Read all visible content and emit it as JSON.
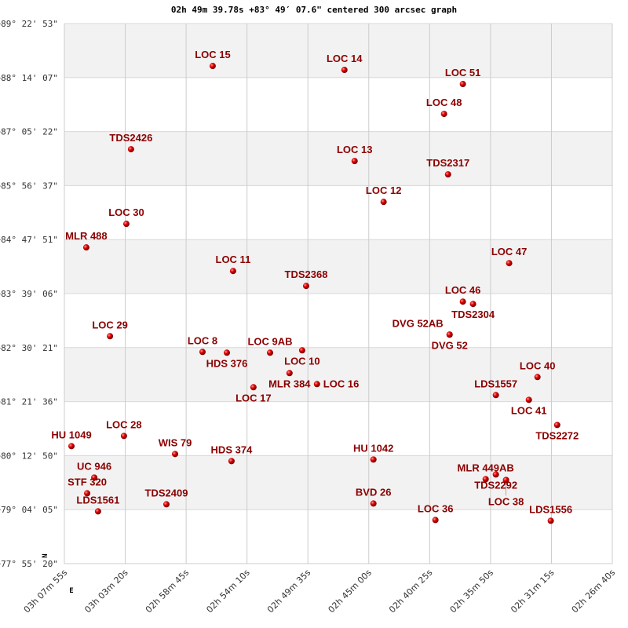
{
  "title": "02h 49m 39.78s +83° 49′ 07.6\" centered 300 arcsec graph",
  "chart_data": {
    "type": "scatter",
    "title": "02h 49m 39.78s +83° 49′ 07.6\" centered 300 arcsec graph",
    "xlabel": "",
    "ylabel": "",
    "xlim": [
      "03h 07m 55s",
      "02h 26m 40s"
    ],
    "ylim": [
      "+77° 55' 20\"",
      "+89° 22' 53\""
    ],
    "x_ticks": [
      "03h 07m 55s",
      "03h 03m 20s",
      "02h 58m 45s",
      "02h 54m 10s",
      "02h 49m 35s",
      "02h 45m 00s",
      "02h 40m 25s",
      "02h 35m 50s",
      "02h 31m 15s",
      "02h 26m 40s"
    ],
    "y_ticks": [
      "+89° 22' 53\"",
      "+88° 14' 07\"",
      "+87° 05' 22\"",
      "+85° 56' 37\"",
      "+84° 47' 51\"",
      "+83° 39' 06\"",
      "+82° 30' 21\"",
      "+81° 21' 36\"",
      "+80° 12' 50\"",
      "+79° 04' 05\"",
      "+77° 55' 20\""
    ],
    "grid": true,
    "compass": {
      "north": "N",
      "east": "E"
    },
    "marker_color": "#cc0000",
    "label_color": "#8b0000",
    "points": [
      {
        "name": "LOC  15",
        "ra": "02h 56m 45s",
        "dec": "+88° 28' 53\""
      },
      {
        "name": "LOC  14",
        "ra": "02h 46m 50s",
        "dec": "+88° 23' 53\""
      },
      {
        "name": "LOC  51",
        "ra": "02h 37m 55s",
        "dec": "+88° 05' 53\""
      },
      {
        "name": "LOC  48",
        "ra": "02h 39m 20s",
        "dec": "+87° 27' 53\""
      },
      {
        "name": "TDS2426",
        "ra": "03h 02m 54s",
        "dec": "+86° 42' 53\""
      },
      {
        "name": "LOC  13",
        "ra": "02h 46m 04s",
        "dec": "+86° 27' 53\""
      },
      {
        "name": "TDS2317",
        "ra": "02h 39m 02s",
        "dec": "+86° 10' 53\""
      },
      {
        "name": "LOC  12",
        "ra": "02h 43m 53s",
        "dec": "+85° 35' 53\""
      },
      {
        "name": "LOC  30",
        "ra": "03h 03m 15s",
        "dec": "+85° 07' 53\""
      },
      {
        "name": "MLR 488",
        "ra": "03h 06m 16s",
        "dec": "+84° 37' 53\""
      },
      {
        "name": "LOC  47",
        "ra": "02h 34m 26s",
        "dec": "+84° 17' 53\""
      },
      {
        "name": "LOC  11",
        "ra": "02h 55m 13s",
        "dec": "+84° 07' 53\""
      },
      {
        "name": "TDS2368",
        "ra": "02h 49m 43s",
        "dec": "+83° 48' 53\""
      },
      {
        "name": "LOC  46",
        "ra": "02h 37m 55s",
        "dec": "+83° 28' 53\""
      },
      {
        "name": "TDS2304",
        "ra": "02h 37m 09s",
        "dec": "+83° 25' 53\""
      },
      {
        "name": "DVG  52",
        "ra": "02h 38m 55s",
        "dec": "+82° 46' 53\""
      },
      {
        "name": "DVG  52AB",
        "ra": "02h 38m 55s",
        "dec": "+82° 46' 53\""
      },
      {
        "name": "LOC  29",
        "ra": "03h 04m 29s",
        "dec": "+82° 44' 53\""
      },
      {
        "name": "LOC  8",
        "ra": "02h 57m 31s",
        "dec": "+82° 24' 53\""
      },
      {
        "name": "HDS 376",
        "ra": "02h 55m 41s",
        "dec": "+82° 23' 53\""
      },
      {
        "name": "LOC  9AB",
        "ra": "02h 52m 26s",
        "dec": "+82° 23' 53\""
      },
      {
        "name": "LOC  10",
        "ra": "02h 50m 01s",
        "dec": "+82° 26' 53\""
      },
      {
        "name": "MLR 384",
        "ra": "02h 50m 58s",
        "dec": "+81° 57' 53\""
      },
      {
        "name": "LOC  16",
        "ra": "02h 48m 54s",
        "dec": "+81° 43' 53\""
      },
      {
        "name": "LOC  17",
        "ra": "02h 53m 41s",
        "dec": "+81° 39' 53\""
      },
      {
        "name": "LOC  40",
        "ra": "02h 32m 18s",
        "dec": "+81° 52' 53\""
      },
      {
        "name": "LDS1557",
        "ra": "02h 35m 26s",
        "dec": "+81° 29' 53\""
      },
      {
        "name": "LOC  41",
        "ra": "02h 32m 57s",
        "dec": "+81° 23' 53\""
      },
      {
        "name": "TDS2272",
        "ra": "02h 30m 49s",
        "dec": "+80° 51' 53\""
      },
      {
        "name": "HU 1049",
        "ra": "03h 07m 23s",
        "dec": "+80° 24' 53\""
      },
      {
        "name": "LOC  28",
        "ra": "03h 03m 26s",
        "dec": "+80° 37' 53\""
      },
      {
        "name": "WIS  79",
        "ra": "02h 59m 35s",
        "dec": "+80° 14' 53\""
      },
      {
        "name": "HDS 374",
        "ra": "02h 55m 20s",
        "dec": "+80° 05' 53\""
      },
      {
        "name": "HU 1042",
        "ra": "02h 44m 39s",
        "dec": "+80° 07' 53\""
      },
      {
        "name": "UC  946",
        "ra": "03h 05m 40s",
        "dec": "+79° 44' 53\""
      },
      {
        "name": "STF 320",
        "ra": "03h 06m 12s",
        "dec": "+79° 24' 53\""
      },
      {
        "name": "LDS1561",
        "ra": "03h 05m 23s",
        "dec": "+79° 01' 53\""
      },
      {
        "name": "TDS2409",
        "ra": "03h 00m 14s",
        "dec": "+79° 10' 53\""
      },
      {
        "name": "BVD  26",
        "ra": "02h 44m 39s",
        "dec": "+79° 11' 53\""
      },
      {
        "name": "LOC  36",
        "ra": "02h 39m 59s",
        "dec": "+78° 50' 53\""
      },
      {
        "name": "MLR 449AB",
        "ra": "02h 36m 12s",
        "dec": "+79° 42' 53\""
      },
      {
        "name": "TDS2292",
        "ra": "02h 35m 26s",
        "dec": "+79° 48' 53\""
      },
      {
        "name": "LOC  38",
        "ra": "02h 34m 40s",
        "dec": "+79° 41' 53\""
      },
      {
        "name": "LDS1556",
        "ra": "02h 31m 18s",
        "dec": "+78° 49' 53\""
      }
    ]
  }
}
